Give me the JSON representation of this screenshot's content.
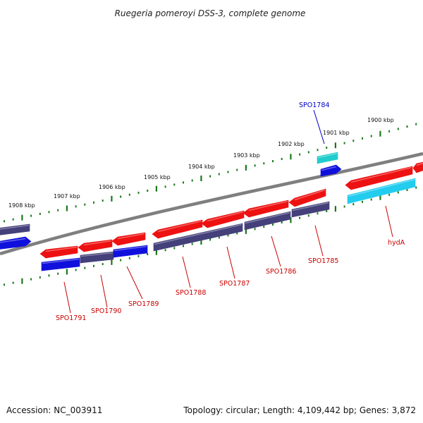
{
  "title": "Ruegeria pomeroyi DSS-3, complete genome",
  "footer": {
    "accession": "Accession: NC_003911",
    "summary": "Topology: circular; Length: 4,109,442 bp; Genes: 3,872"
  },
  "kbp_labels": [
    "1908 kbp",
    "1907 kbp",
    "1906 kbp",
    "1905 kbp",
    "1904 kbp",
    "1903 kbp",
    "1902 kbp",
    "1901 kbp",
    "1900 kbp"
  ],
  "gene_labels": [
    {
      "id": "SPO1784",
      "text": "SPO1784",
      "color": "#0000cc"
    },
    {
      "id": "SPO1785",
      "text": "SPO1785",
      "color": "#cc0000"
    },
    {
      "id": "SPO1786",
      "text": "SPO1786",
      "color": "#cc0000"
    },
    {
      "id": "SPO1787",
      "text": "SPO1787",
      "color": "#cc0000"
    },
    {
      "id": "SPO1788",
      "text": "SPO1788",
      "color": "#cc0000"
    },
    {
      "id": "SPO1789",
      "text": "SPO1789",
      "color": "#cc0000"
    },
    {
      "id": "SPO1790",
      "text": "SPO1790",
      "color": "#cc0000"
    },
    {
      "id": "SPO1791",
      "text": "SPO1791",
      "color": "#cc0000"
    },
    {
      "id": "hydA",
      "text": "hydA",
      "color": "#cc0000"
    }
  ],
  "colors": {
    "backbone": "#808080",
    "tick": "#1a7a1a",
    "cds": "#ee1111",
    "gene_dark": "#44407a",
    "gene_blue": "#1010dd",
    "gene_cyan": "#22ccee",
    "gene_teal": "#22cccc"
  }
}
